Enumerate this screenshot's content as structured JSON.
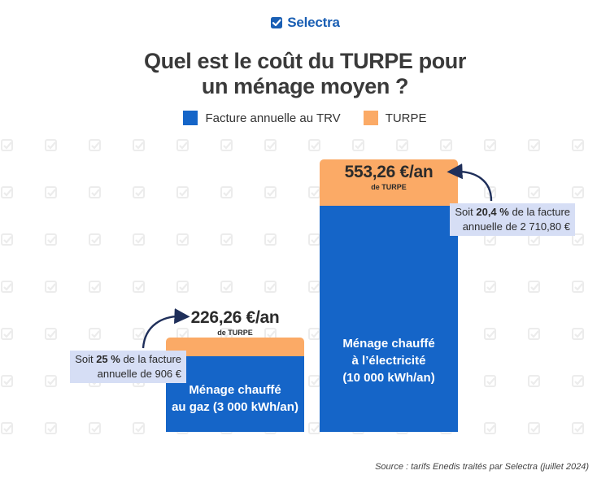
{
  "brand": {
    "name": "Selectra",
    "icon": "check-square-icon",
    "color": "#1a5fb4"
  },
  "title": {
    "line1": "Quel est le coût du TURPE pour",
    "line2": "un ménage moyen ?"
  },
  "legend": [
    {
      "label": "Facture annuelle au TRV",
      "color": "#1565c8"
    },
    {
      "label": "TURPE",
      "color": "#fbaa66"
    }
  ],
  "chart_data": {
    "type": "bar",
    "stacked": true,
    "categories": [
      {
        "line1": "Ménage chauffé",
        "line2": "au gaz (3 000 kWh/an)",
        "line3": ""
      },
      {
        "line1": "Ménage chauffé",
        "line2": "à l’électricité",
        "line3": "(10 000 kWh/an)"
      }
    ],
    "series": [
      {
        "name": "Facture annuelle au TRV",
        "color": "#1565c8",
        "values": [
          906,
          2710.8
        ]
      },
      {
        "name": "TURPE",
        "color": "#fbaa66",
        "values": [
          226.26,
          553.26
        ]
      }
    ],
    "value_labels": [
      {
        "main": "226,26 €/an",
        "sub": "de TURPE"
      },
      {
        "main": "553,26 €/an",
        "sub": "de TURPE"
      }
    ],
    "annotations": [
      {
        "before": "Soit ",
        "bold": "25 %",
        "after": " de la facture",
        "line2": "annuelle de 906 €"
      },
      {
        "before": "Soit ",
        "bold": "20,4 %",
        "after": " de la facture",
        "line2": "annuelle de 2 710,80 €"
      }
    ]
  },
  "source": "Source : tarifs Enedis traités par Selectra (juillet 2024)"
}
